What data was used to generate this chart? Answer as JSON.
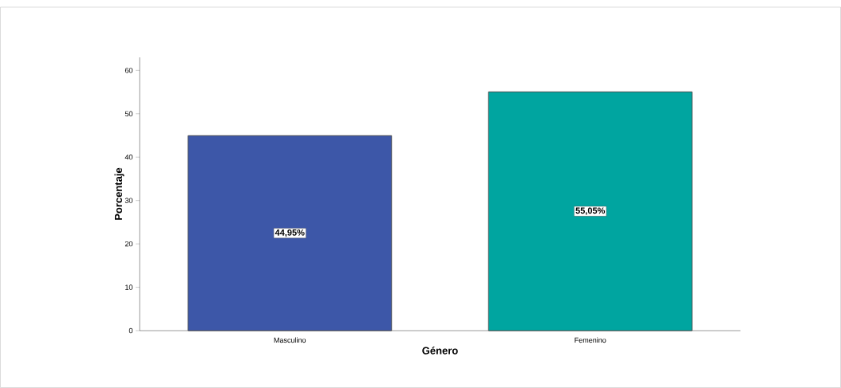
{
  "chart_data": {
    "type": "bar",
    "xlabel": "Género",
    "ylabel": "Porcentaje",
    "categories": [
      "Masculino",
      "Femenino"
    ],
    "values": [
      44.95,
      55.05
    ],
    "colors": [
      "#3d57a8",
      "#00a5a0"
    ],
    "value_labels": [
      "44,95%",
      "55,05%"
    ],
    "ylim": [
      0,
      63
    ],
    "yticks": [
      0,
      10,
      20,
      30,
      40,
      50,
      60
    ],
    "grid": false
  }
}
